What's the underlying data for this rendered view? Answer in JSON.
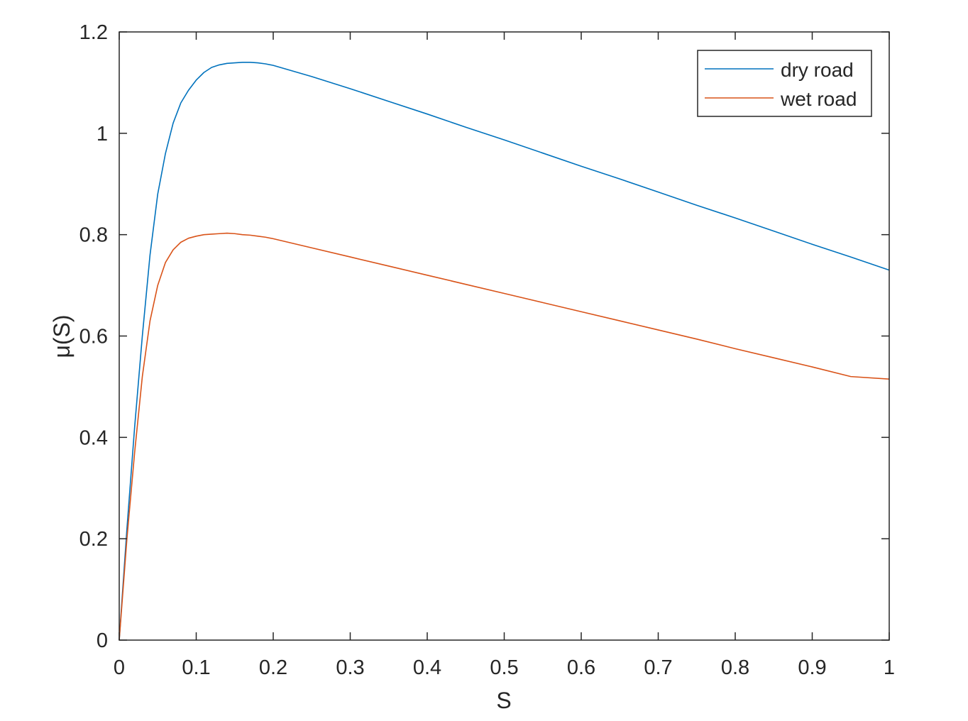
{
  "chart_data": {
    "type": "line",
    "title": "",
    "xlabel": "S",
    "ylabel": "μ(S)",
    "xlim": [
      0,
      1
    ],
    "ylim": [
      0,
      1.2
    ],
    "xticks": [
      0,
      0.1,
      0.2,
      0.3,
      0.4,
      0.5,
      0.6,
      0.7,
      0.8,
      0.9,
      1
    ],
    "xtick_labels": [
      "0",
      "0.1",
      "0.2",
      "0.3",
      "0.4",
      "0.5",
      "0.6",
      "0.7",
      "0.8",
      "0.9",
      "1"
    ],
    "yticks": [
      0,
      0.2,
      0.4,
      0.6,
      0.8,
      1,
      1.2
    ],
    "ytick_labels": [
      "0",
      "0.2",
      "0.4",
      "0.6",
      "0.8",
      "1",
      "1.2"
    ],
    "grid": false,
    "legend_position": "top-right",
    "series": [
      {
        "name": "dry road",
        "color": "#0072BD",
        "x": [
          0,
          0.01,
          0.02,
          0.03,
          0.04,
          0.05,
          0.06,
          0.07,
          0.08,
          0.09,
          0.1,
          0.11,
          0.12,
          0.13,
          0.14,
          0.15,
          0.16,
          0.17,
          0.18,
          0.19,
          0.2,
          0.25,
          0.3,
          0.35,
          0.4,
          0.45,
          0.5,
          0.55,
          0.6,
          0.65,
          0.7,
          0.75,
          0.8,
          0.85,
          0.9,
          0.95,
          1.0
        ],
        "y": [
          0,
          0.22,
          0.42,
          0.6,
          0.76,
          0.88,
          0.96,
          1.02,
          1.06,
          1.085,
          1.105,
          1.12,
          1.13,
          1.135,
          1.138,
          1.139,
          1.14,
          1.14,
          1.139,
          1.137,
          1.134,
          1.112,
          1.088,
          1.063,
          1.038,
          1.012,
          0.987,
          0.961,
          0.935,
          0.91,
          0.884,
          0.858,
          0.833,
          0.807,
          0.781,
          0.756,
          0.73
        ]
      },
      {
        "name": "wet road",
        "color": "#D95319",
        "x": [
          0,
          0.01,
          0.02,
          0.03,
          0.04,
          0.05,
          0.06,
          0.07,
          0.08,
          0.09,
          0.1,
          0.11,
          0.12,
          0.13,
          0.14,
          0.15,
          0.16,
          0.17,
          0.18,
          0.19,
          0.2,
          0.25,
          0.3,
          0.35,
          0.4,
          0.45,
          0.5,
          0.55,
          0.6,
          0.65,
          0.7,
          0.75,
          0.8,
          0.85,
          0.9,
          0.95,
          1.0
        ],
        "y": [
          0,
          0.2,
          0.37,
          0.52,
          0.63,
          0.7,
          0.745,
          0.77,
          0.785,
          0.793,
          0.797,
          0.8,
          0.801,
          0.802,
          0.803,
          0.802,
          0.8,
          0.799,
          0.797,
          0.795,
          0.792,
          0.774,
          0.756,
          0.738,
          0.72,
          0.702,
          0.684,
          0.666,
          0.648,
          0.63,
          0.612,
          0.594,
          0.575,
          0.557,
          0.539,
          0.52,
          0.515
        ]
      }
    ]
  }
}
